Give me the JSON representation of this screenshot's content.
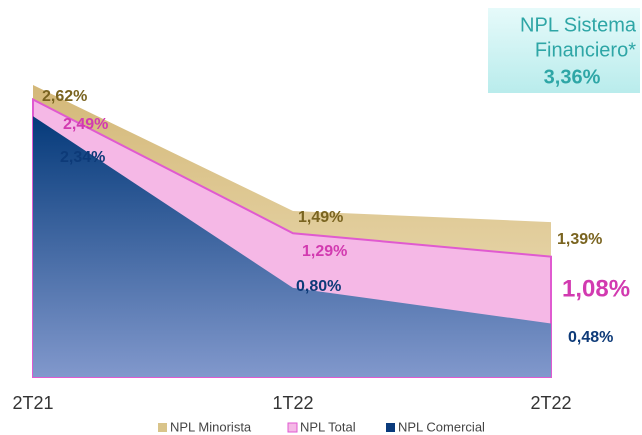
{
  "chart_data": {
    "type": "area",
    "categories": [
      "2T21",
      "1T22",
      "2T22"
    ],
    "series": [
      {
        "name": "NPL Minorista",
        "color": "#d9c48a",
        "label_color": "#7a6420",
        "values": [
          2.62,
          1.49,
          1.39
        ],
        "value_labels": [
          "2,62%",
          "1,49%",
          "1,39%"
        ]
      },
      {
        "name": "NPL Total",
        "color": "#f5b8e6",
        "label_color": "#d23ab0",
        "values": [
          2.49,
          1.29,
          1.08
        ],
        "value_labels": [
          "2,49%",
          "1,29%",
          "1,08%"
        ]
      },
      {
        "name": "NPL Comercial",
        "color": "#0b3b7c",
        "label_color": "#0d3a78",
        "values": [
          2.34,
          0.8,
          0.48
        ],
        "value_labels": [
          "2,34%",
          "0,80%",
          "0,48%"
        ]
      }
    ],
    "annotation": {
      "text": [
        "NPL Sistema",
        "Financiero*"
      ],
      "value": 3.36,
      "value_label": "3,36%"
    }
  }
}
